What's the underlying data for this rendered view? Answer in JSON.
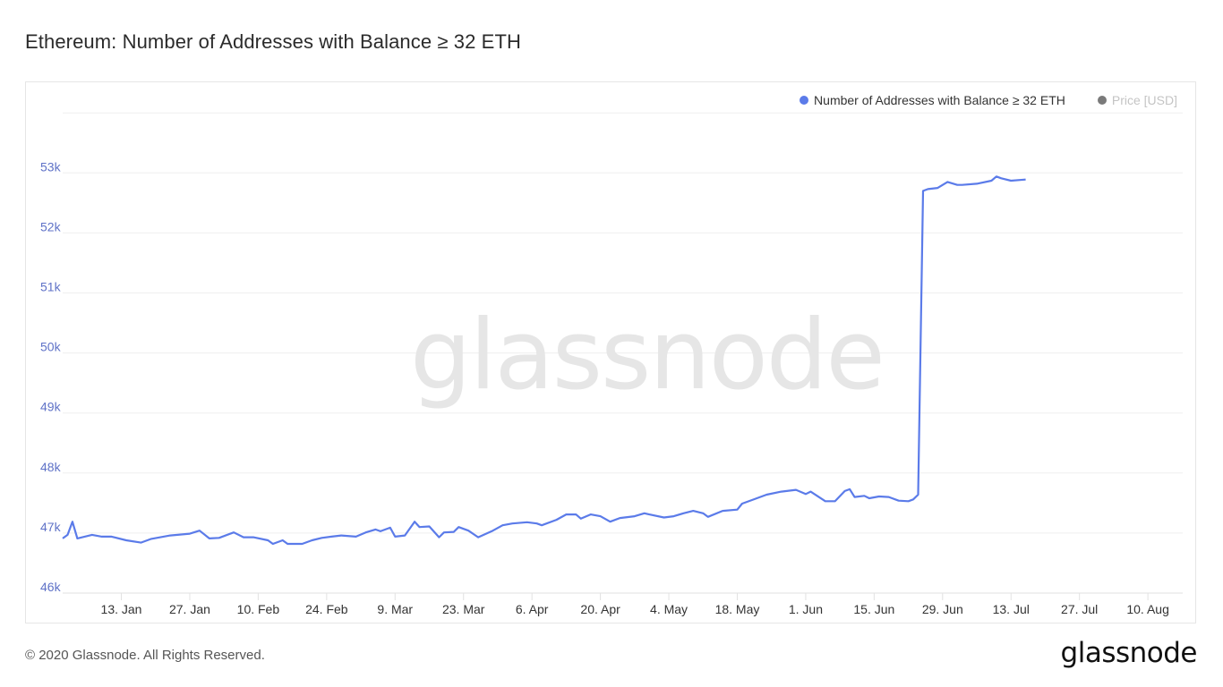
{
  "header": {
    "title": "Ethereum: Number of Addresses with Balance ≥ 32 ETH"
  },
  "legend": {
    "items": [
      {
        "label": "Number of Addresses with Balance ≥ 32 ETH",
        "color": "#5b7be9",
        "active": true
      },
      {
        "label": "Price [USD]",
        "color": "#7a7a7a",
        "active": false
      }
    ]
  },
  "watermark": "glassnode",
  "footer": {
    "copyright": "© 2020 Glassnode. All Rights Reserved.",
    "logo": "glassnode"
  },
  "colors": {
    "line": "#5b7be9",
    "ytick": "#5f72c7",
    "grid": "#ececec"
  },
  "chart_data": {
    "type": "line",
    "title": "Ethereum: Number of Addresses with Balance ≥ 32 ETH",
    "xlabel": "",
    "ylabel": "",
    "ylim": [
      46000,
      54000
    ],
    "yticks": [
      "46k",
      "47k",
      "48k",
      "49k",
      "50k",
      "51k",
      "52k",
      "53k"
    ],
    "ytick_values": [
      46000,
      47000,
      48000,
      49000,
      50000,
      51000,
      52000,
      53000
    ],
    "xticks": [
      "13. Jan",
      "27. Jan",
      "10. Feb",
      "24. Feb",
      "9. Mar",
      "23. Mar",
      "6. Apr",
      "20. Apr",
      "4. May",
      "18. May",
      "1. Jun",
      "15. Jun",
      "29. Jun",
      "13. Jul",
      "27. Jul",
      "10. Aug"
    ],
    "xrange": [
      "2020-01-01",
      "2020-08-20"
    ],
    "grid": true,
    "legend_position": "top-right",
    "series": [
      {
        "name": "Number of Addresses with Balance ≥ 32 ETH",
        "color": "#5b7be9",
        "day_offsets": [
          0,
          1,
          2,
          3,
          6,
          8,
          10,
          13,
          16,
          18,
          22,
          26,
          28,
          30,
          32,
          35,
          37,
          39,
          42,
          43,
          45,
          46,
          49,
          51,
          53,
          55,
          57,
          60,
          62,
          64,
          65,
          67,
          68,
          70,
          72,
          73,
          75,
          77,
          78,
          80,
          81,
          83,
          85,
          88,
          90,
          92,
          95,
          97,
          98,
          101,
          103,
          105,
          106,
          108,
          110,
          112,
          114,
          117,
          119,
          120,
          123,
          125,
          127,
          129,
          131,
          132,
          135,
          138,
          139,
          141,
          144,
          147,
          150,
          152,
          153,
          156,
          158,
          160,
          161,
          162,
          164,
          165,
          167,
          169,
          171,
          173,
          174,
          175,
          176,
          177,
          179,
          181,
          183,
          184,
          187,
          190,
          191,
          192,
          194,
          197
        ],
        "values": [
          46910,
          46970,
          47190,
          46910,
          46970,
          46940,
          46940,
          46880,
          46840,
          46900,
          46960,
          46990,
          47040,
          46910,
          46920,
          47010,
          46930,
          46930,
          46880,
          46820,
          46880,
          46820,
          46820,
          46880,
          46920,
          46940,
          46960,
          46940,
          47010,
          47060,
          47030,
          47090,
          46940,
          46960,
          47190,
          47100,
          47110,
          46930,
          47010,
          47020,
          47100,
          47040,
          46930,
          47040,
          47130,
          47160,
          47180,
          47160,
          47130,
          47220,
          47310,
          47310,
          47240,
          47310,
          47280,
          47190,
          47250,
          47280,
          47330,
          47310,
          47260,
          47280,
          47330,
          47370,
          47330,
          47270,
          47370,
          47390,
          47490,
          47550,
          47640,
          47690,
          47720,
          47650,
          47690,
          47530,
          47530,
          47700,
          47730,
          47600,
          47620,
          47580,
          47610,
          47600,
          47540,
          47530,
          47560,
          47640,
          52700,
          52730,
          52750,
          52850,
          52800,
          52800,
          52820,
          52870,
          52940,
          52910,
          52870,
          52890
        ]
      },
      {
        "name": "Price [USD]",
        "color": "#7a7a7a",
        "hidden": true,
        "values": []
      }
    ]
  }
}
